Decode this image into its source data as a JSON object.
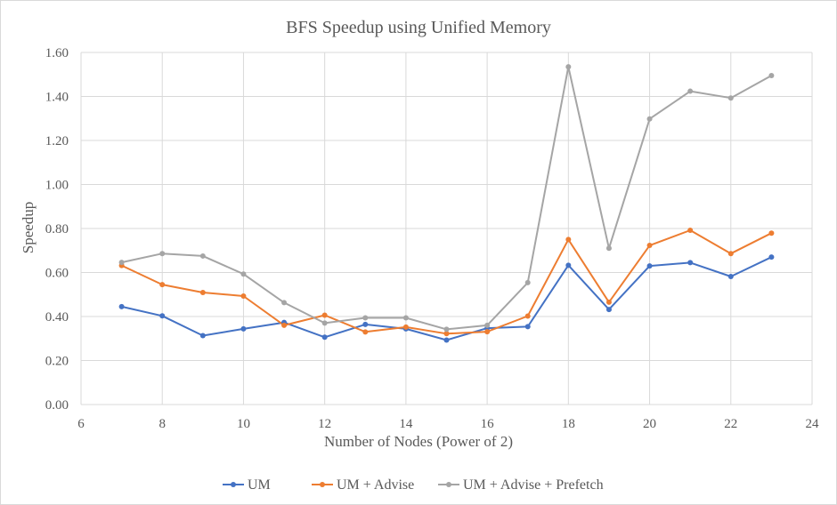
{
  "chart_data": {
    "type": "line",
    "title": "BFS Speedup using Unified Memory",
    "xlabel": "Number of Nodes (Power of 2)",
    "ylabel": "Speedup",
    "xlim": [
      6,
      24
    ],
    "ylim": [
      0,
      1.6
    ],
    "xticks": [
      "6",
      "8",
      "10",
      "12",
      "14",
      "16",
      "18",
      "20",
      "22",
      "24"
    ],
    "yticks": [
      "0.00",
      "0.20",
      "0.40",
      "0.60",
      "0.80",
      "1.00",
      "1.20",
      "1.40",
      "1.60"
    ],
    "grid": true,
    "legend_position": "bottom",
    "x": [
      7,
      8,
      9,
      10,
      11,
      12,
      13,
      14,
      15,
      16,
      17,
      18,
      19,
      20,
      21,
      22,
      23
    ],
    "series": [
      {
        "name": "UM",
        "color": "#4472c4",
        "values": [
          0.445,
          0.403,
          0.313,
          0.344,
          0.373,
          0.306,
          0.364,
          0.344,
          0.293,
          0.347,
          0.354,
          0.633,
          0.432,
          0.63,
          0.645,
          0.582,
          0.67
        ]
      },
      {
        "name": "UM + Advise",
        "color": "#ed7d31",
        "values": [
          0.632,
          0.545,
          0.509,
          0.493,
          0.36,
          0.406,
          0.33,
          0.352,
          0.322,
          0.331,
          0.402,
          0.75,
          0.465,
          0.723,
          0.792,
          0.686,
          0.779
        ]
      },
      {
        "name": "UM + Advise + Prefetch",
        "color": "#a5a5a5",
        "values": [
          0.646,
          0.686,
          0.675,
          0.593,
          0.463,
          0.37,
          0.394,
          0.394,
          0.342,
          0.36,
          0.554,
          1.535,
          0.71,
          1.298,
          1.424,
          1.393,
          1.495
        ]
      }
    ]
  }
}
